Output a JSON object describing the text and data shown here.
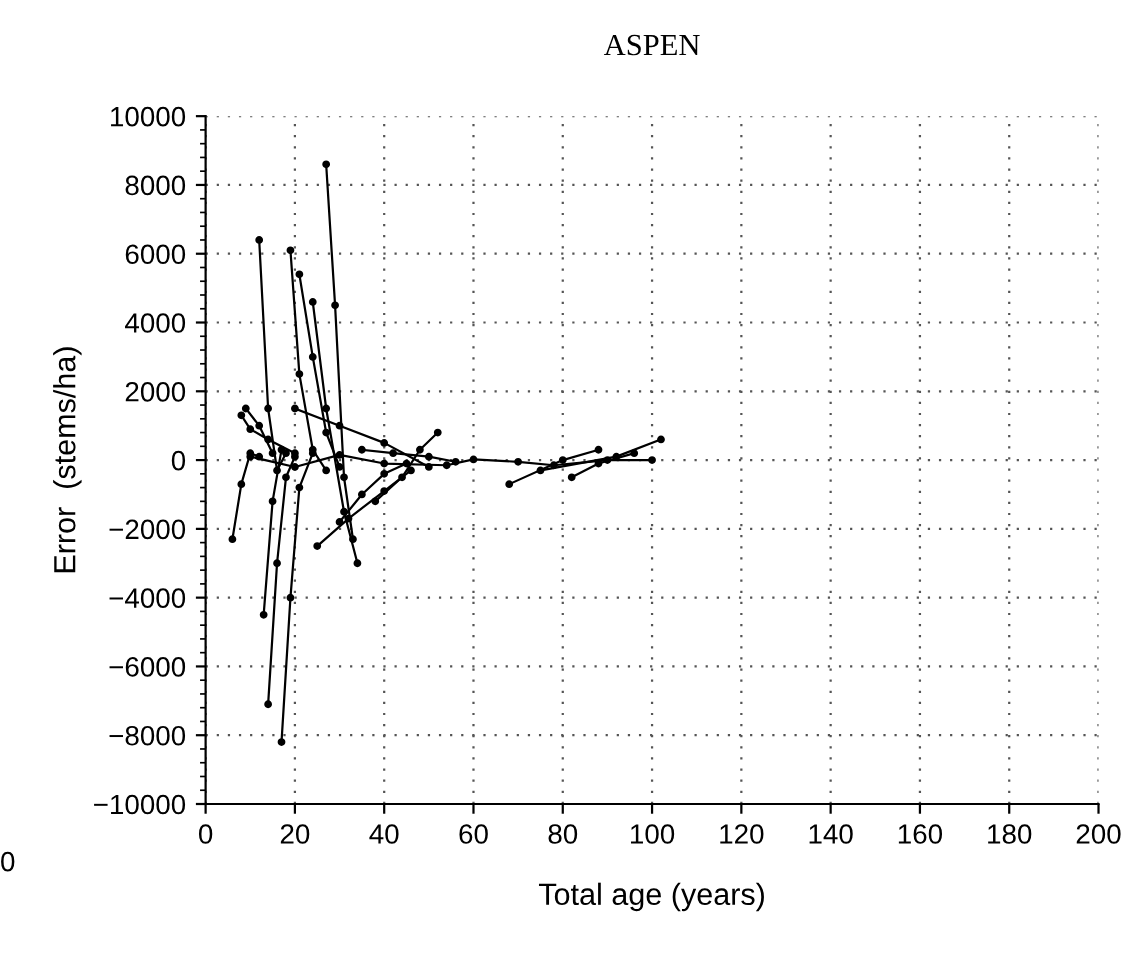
{
  "chart_data": {
    "type": "line",
    "title": "ASPEN",
    "xlabel": "Total age (years)",
    "ylabel": "Error  (stems/ha)",
    "annotations": [
      "0"
    ],
    "xlim": [
      0,
      200
    ],
    "xticks": [
      0,
      20,
      40,
      60,
      80,
      100,
      120,
      140,
      160,
      180,
      200
    ],
    "ylim": [
      -10000,
      10000
    ],
    "yticks": [
      {
        "value": -10000,
        "label": "−10000"
      },
      {
        "value": -8000,
        "label": "−8000"
      },
      {
        "value": -6000,
        "label": "−6000"
      },
      {
        "value": -4000,
        "label": "−4000"
      },
      {
        "value": -2000,
        "label": "−2000"
      },
      0,
      2000,
      4000,
      6000,
      8000,
      10000
    ],
    "grid": true,
    "marker": "circle",
    "line_style": "solid",
    "legend": false,
    "series": [
      {
        "color": "#000000",
        "x": [
          12,
          14,
          16,
          18
        ],
        "values": [
          6400,
          1500,
          -300,
          200
        ]
      },
      {
        "color": "#000000",
        "x": [
          13,
          15,
          17
        ],
        "values": [
          -4500,
          -1200,
          300
        ]
      },
      {
        "color": "#000000",
        "x": [
          14,
          16,
          18,
          20
        ],
        "values": [
          -7100,
          -3000,
          -500,
          100
        ]
      },
      {
        "color": "#000000",
        "x": [
          17,
          19,
          21,
          24
        ],
        "values": [
          -8200,
          -4000,
          -800,
          200
        ]
      },
      {
        "color": "#000000",
        "x": [
          19,
          21,
          24,
          27
        ],
        "values": [
          6100,
          2500,
          300,
          -300
        ]
      },
      {
        "color": "#000000",
        "x": [
          21,
          24,
          27,
          30
        ],
        "values": [
          5400,
          3000,
          800,
          -200
        ]
      },
      {
        "color": "#000000",
        "x": [
          27,
          29,
          31,
          33
        ],
        "values": [
          8600,
          4500,
          -500,
          -2300
        ]
      },
      {
        "color": "#000000",
        "x": [
          24,
          27,
          31,
          34
        ],
        "values": [
          4600,
          1500,
          -1500,
          -3000
        ]
      },
      {
        "color": "#000000",
        "x": [
          6,
          8,
          10,
          12
        ],
        "values": [
          -2300,
          -700,
          200,
          100
        ]
      },
      {
        "color": "#000000",
        "x": [
          8,
          10,
          14,
          20
        ],
        "values": [
          1300,
          900,
          600,
          200
        ]
      },
      {
        "color": "#000000",
        "x": [
          30,
          35,
          40,
          45
        ],
        "values": [
          -1800,
          -1000,
          -400,
          -100
        ]
      },
      {
        "color": "#000000",
        "x": [
          38,
          44,
          48,
          52
        ],
        "values": [
          -1200,
          -500,
          300,
          800
        ]
      },
      {
        "color": "#000000",
        "x": [
          10,
          20,
          30,
          40,
          54,
          60,
          70,
          78,
          90,
          100
        ],
        "values": [
          100,
          -200,
          150,
          -100,
          -150,
          20,
          -50,
          -150,
          0,
          0
        ]
      },
      {
        "color": "#000000",
        "x": [
          68,
          80,
          88
        ],
        "values": [
          -700,
          0,
          300
        ]
      },
      {
        "color": "#000000",
        "x": [
          75,
          92,
          102
        ],
        "values": [
          -300,
          100,
          600
        ]
      },
      {
        "color": "#000000",
        "x": [
          82,
          88,
          96
        ],
        "values": [
          -500,
          -100,
          200
        ]
      },
      {
        "color": "#000000",
        "x": [
          20,
          30,
          40,
          50
        ],
        "values": [
          1500,
          1000,
          500,
          -200
        ]
      },
      {
        "color": "#000000",
        "x": [
          25,
          32,
          40,
          46
        ],
        "values": [
          -2500,
          -1700,
          -900,
          -300
        ]
      },
      {
        "color": "#000000",
        "x": [
          9,
          12,
          15
        ],
        "values": [
          1500,
          1000,
          200
        ]
      },
      {
        "color": "#000000",
        "x": [
          35,
          42,
          50,
          56
        ],
        "values": [
          300,
          200,
          100,
          -50
        ]
      }
    ]
  }
}
